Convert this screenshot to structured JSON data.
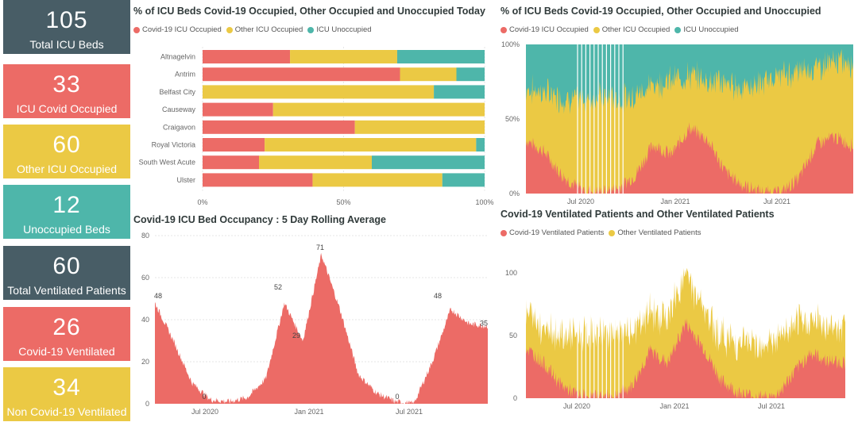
{
  "colors": {
    "red": "#EC6B66",
    "yellow": "#EBC944",
    "teal": "#4EB6AA",
    "slate": "#485D66"
  },
  "cards": [
    {
      "value": "105",
      "label": "Total ICU Beds",
      "color": "#485D66"
    },
    {
      "value": "33",
      "label": "ICU Covid Occupied",
      "color": "#EC6B66"
    },
    {
      "value": "60",
      "label": "Other ICU Occupied",
      "color": "#EBC944"
    },
    {
      "value": "12",
      "label": "Unoccupied Beds",
      "color": "#4EB6AA"
    },
    {
      "value": "60",
      "label": "Total Ventilated Patients",
      "color": "#485D66"
    },
    {
      "value": "26",
      "label": "Covid-19 Ventilated",
      "color": "#EC6B66"
    },
    {
      "value": "34",
      "label": "Non Covid-19 Ventilated",
      "color": "#EBC944"
    }
  ],
  "legend_icu": [
    "Covid-19 ICU Occupied",
    "Other ICU Occupied",
    "ICU Unoccupied"
  ],
  "legend_vent": [
    "Covid-19 Ventilated Patients",
    "Other Ventilated Patients"
  ],
  "chart_data": [
    {
      "type": "bar",
      "orientation": "horizontal",
      "stacked": "100%",
      "title": "% of ICU Beds Covid-19 Occupied, Other Occupied and Unoccupied Today",
      "categories": [
        "Altnagelvin",
        "Antrim",
        "Belfast City",
        "Causeway",
        "Craigavon",
        "Royal Victoria",
        "South West Acute",
        "Ulster"
      ],
      "series": [
        {
          "name": "Covid-19 ICU Occupied",
          "values": [
            31,
            70,
            0,
            25,
            54,
            22,
            20,
            39
          ]
        },
        {
          "name": "Other ICU Occupied",
          "values": [
            38,
            20,
            82,
            75,
            46,
            75,
            40,
            46
          ]
        },
        {
          "name": "ICU Unoccupied",
          "values": [
            31,
            10,
            18,
            0,
            0,
            3,
            40,
            15
          ]
        }
      ],
      "xticks": [
        "0%",
        "50%",
        "100%"
      ],
      "legend": "top-left"
    },
    {
      "type": "area",
      "stacked": "100%",
      "title": "% of ICU Beds Covid-19 Occupied, Other Occupied and Unoccupied",
      "x": [
        "Apr 2020",
        "May 2020",
        "Jun 2020",
        "Jul 2020",
        "Aug 2020",
        "Sep 2020",
        "Oct 2020",
        "Nov 2020",
        "Dec 2020",
        "Jan 2021",
        "Feb 2021",
        "Mar 2021",
        "Apr 2021",
        "May 2021",
        "Jun 2021",
        "Jul 2021",
        "Aug 2021",
        "Sep 2021",
        "Oct 2021"
      ],
      "series": [
        {
          "name": "Covid-19 ICU Occupied",
          "values": [
            36,
            28,
            12,
            3,
            1,
            3,
            12,
            33,
            26,
            44,
            36,
            14,
            5,
            1,
            0,
            10,
            33,
            38,
            32
          ]
        },
        {
          "name": "Other ICU Occupied",
          "values": [
            34,
            40,
            52,
            60,
            64,
            60,
            54,
            40,
            50,
            35,
            40,
            60,
            66,
            72,
            78,
            72,
            52,
            50,
            56
          ]
        },
        {
          "name": "ICU Unoccupied",
          "values": [
            30,
            32,
            36,
            37,
            35,
            37,
            34,
            27,
            24,
            21,
            24,
            26,
            29,
            27,
            22,
            18,
            15,
            12,
            12
          ]
        }
      ],
      "xticks": [
        "Jul 2020",
        "Jan 2021",
        "Jul 2021"
      ],
      "yticks": [
        "0%",
        "50%",
        "100%"
      ],
      "legend": "top-left"
    },
    {
      "type": "area",
      "title": "Covid-19 ICU Bed Occupancy : 5 Day Rolling Average",
      "x": [
        "Apr 2020",
        "May 2020",
        "Jun 2020",
        "Jul 2020",
        "Aug 2020",
        "Sep 2020",
        "Oct 2020",
        "Nov 2020",
        "Dec 2020",
        "Jan 2021",
        "Feb 2021",
        "Mar 2021",
        "Apr 2021",
        "May 2021",
        "Jun 2021",
        "Jul 2021",
        "Aug 2021",
        "Sep 2021",
        "Oct 2021"
      ],
      "values": [
        48,
        30,
        10,
        2,
        1,
        3,
        12,
        48,
        30,
        71,
        45,
        14,
        5,
        1,
        0,
        20,
        45,
        38,
        37
      ],
      "data_labels": [
        {
          "x": "Apr 2020",
          "label": "48"
        },
        {
          "x": "Jul 2020",
          "label": "0"
        },
        {
          "x": "Nov 2020",
          "label": "52"
        },
        {
          "x": "Dec 2020",
          "label": "29"
        },
        {
          "x": "Jan 2021",
          "label": "71"
        },
        {
          "x": "Jun 2021",
          "label": "0"
        },
        {
          "x": "Aug 2021",
          "label": "48"
        },
        {
          "x": "Oct 2021",
          "label": "35"
        }
      ],
      "xticks": [
        "Jul 2020",
        "Jan 2021",
        "Jul 2021"
      ],
      "yticks": [
        "0",
        "20",
        "40",
        "60",
        "80"
      ],
      "ylim": [
        0,
        80
      ]
    },
    {
      "type": "area",
      "stacked": true,
      "title": "Covid-19 Ventilated Patients and Other Ventilated Patients",
      "x": [
        "Apr 2020",
        "May 2020",
        "Jun 2020",
        "Jul 2020",
        "Aug 2020",
        "Sep 2020",
        "Oct 2020",
        "Nov 2020",
        "Dec 2020",
        "Jan 2021",
        "Feb 2021",
        "Mar 2021",
        "Apr 2021",
        "May 2021",
        "Jun 2021",
        "Jul 2021",
        "Aug 2021",
        "Sep 2021",
        "Oct 2021"
      ],
      "series": [
        {
          "name": "Covid-19 Ventilated Patients",
          "values": [
            40,
            28,
            10,
            2,
            1,
            2,
            10,
            38,
            28,
            60,
            40,
            14,
            4,
            1,
            0,
            18,
            36,
            30,
            28
          ]
        },
        {
          "name": "Other Ventilated Patients",
          "values": [
            28,
            30,
            40,
            48,
            50,
            48,
            42,
            30,
            36,
            40,
            30,
            36,
            40,
            42,
            44,
            38,
            26,
            28,
            30
          ]
        }
      ],
      "xticks": [
        "Jul 2020",
        "Jan 2021",
        "Jul 2021"
      ],
      "yticks": [
        "0",
        "50",
        "100"
      ],
      "legend": "top-left"
    }
  ]
}
